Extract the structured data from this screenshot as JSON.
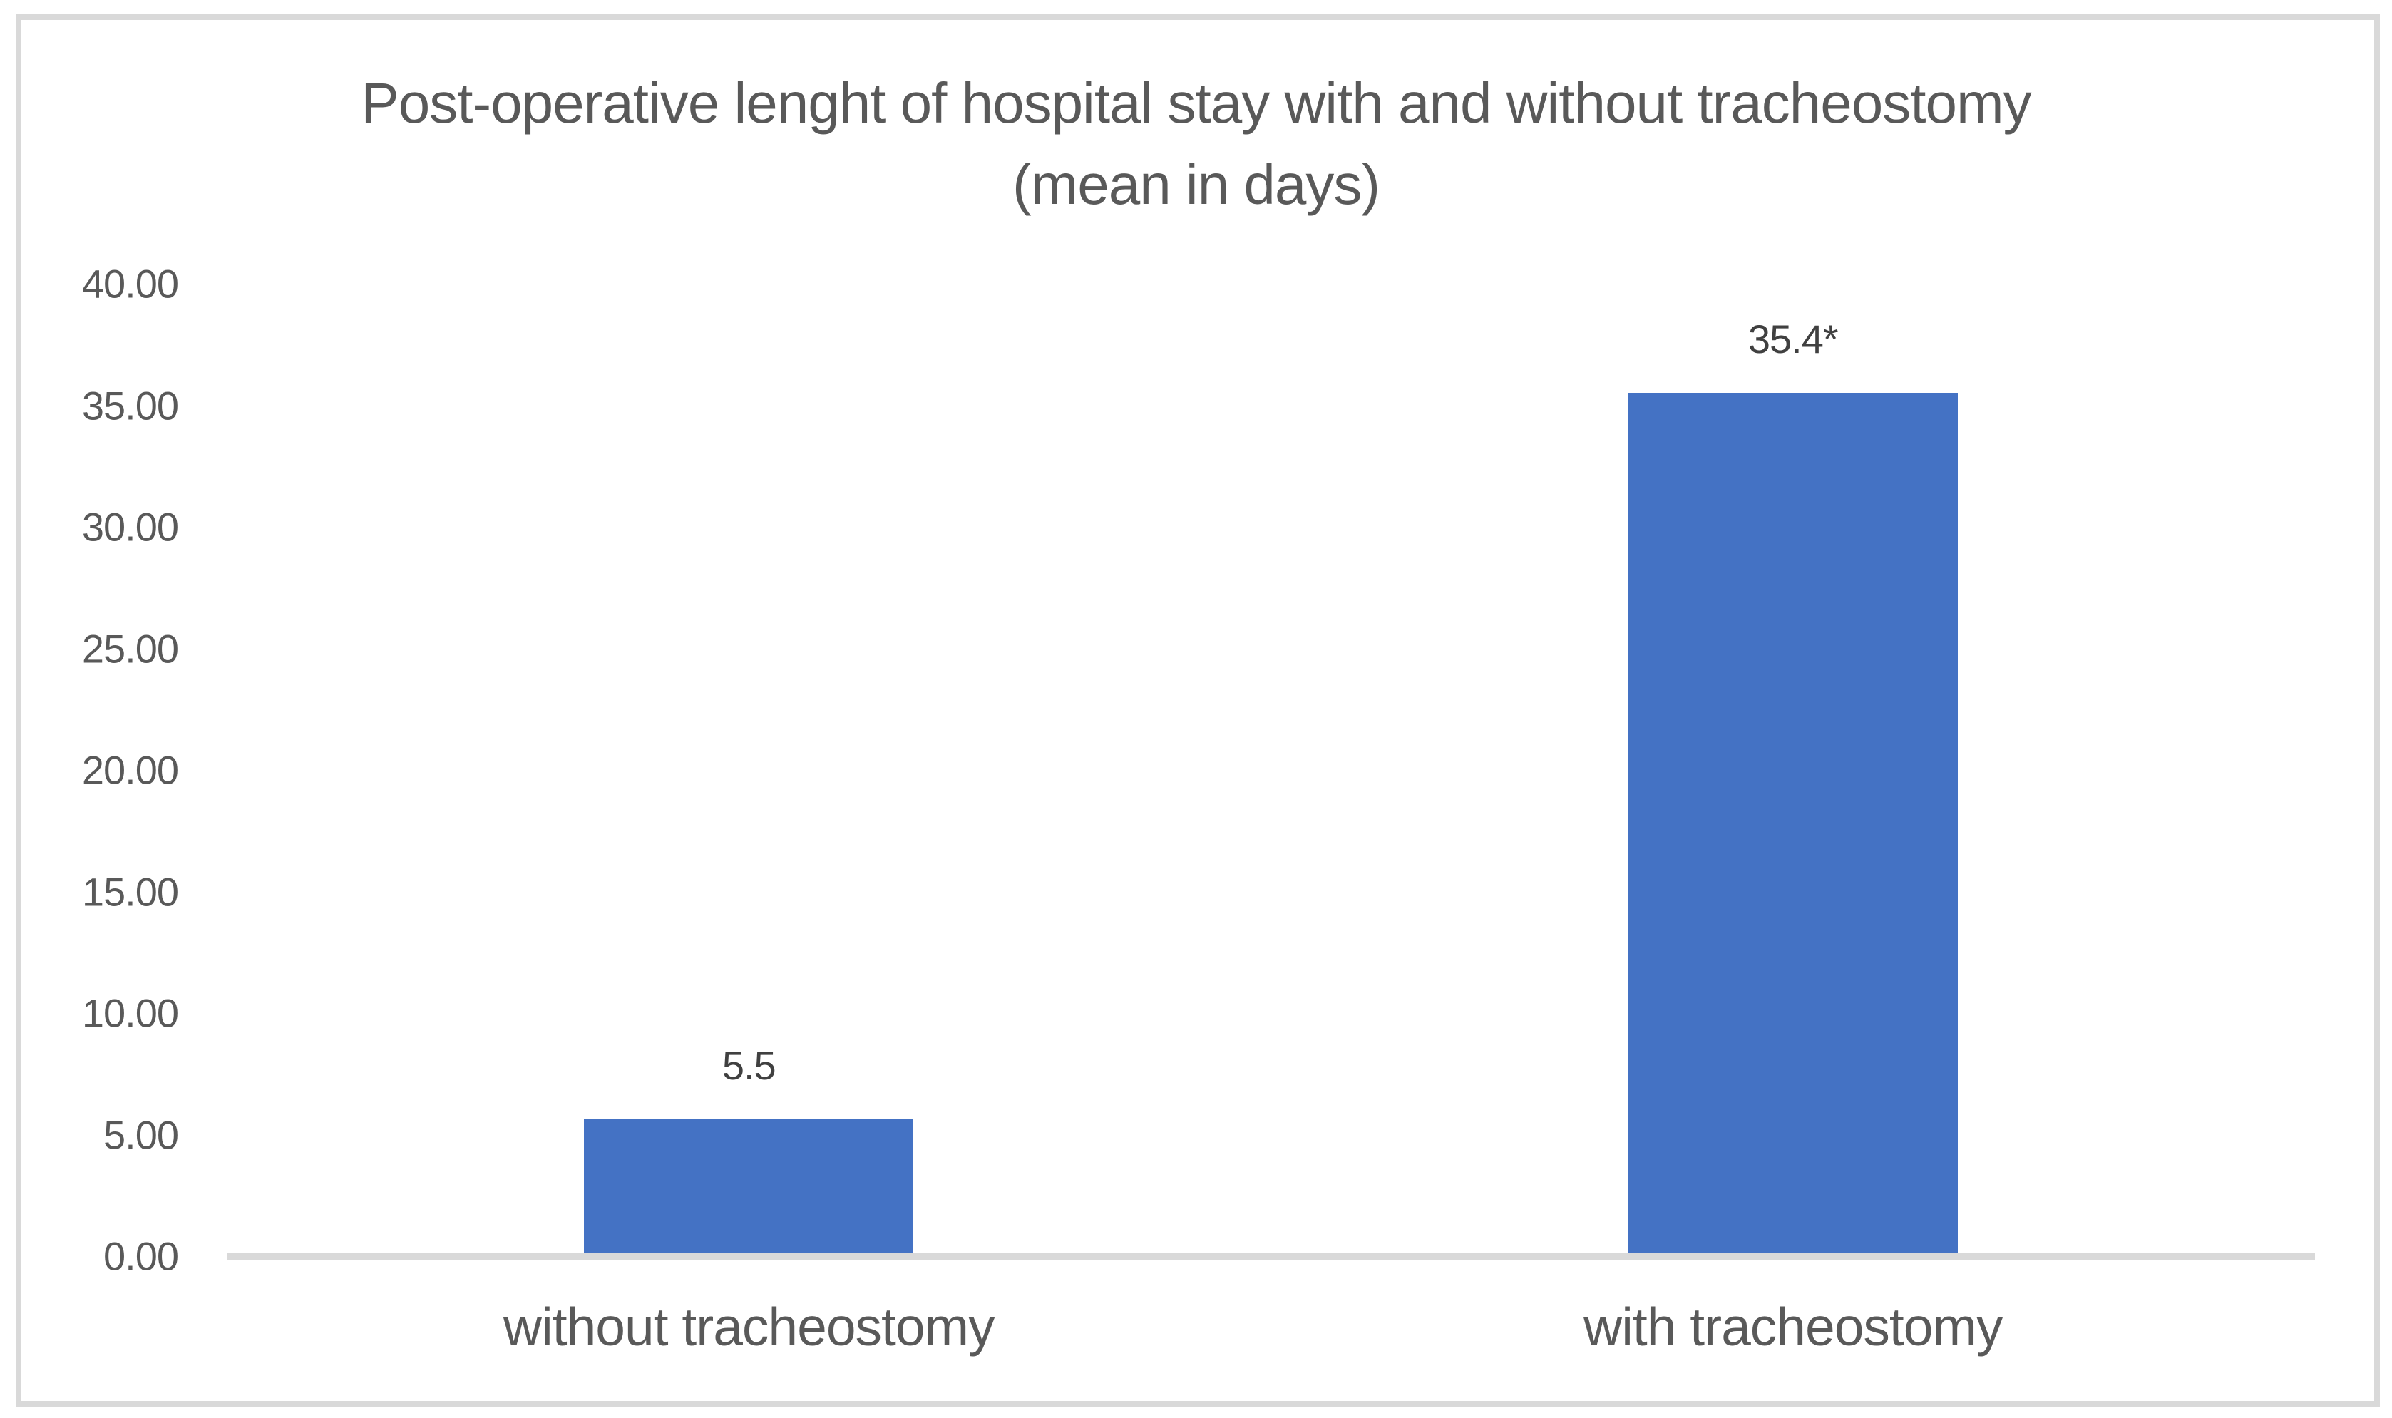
{
  "chart_data": {
    "type": "bar",
    "title_line1": "Post-operative lenght of hospital stay with and without tracheostomy",
    "title_line2": "(mean in days)",
    "categories": [
      "without tracheostomy",
      "with tracheostomy"
    ],
    "values": [
      5.5,
      35.4
    ],
    "data_labels": [
      "5.5",
      "35.4*"
    ],
    "ylim": [
      0,
      40
    ],
    "yticks": [
      {
        "value": 40,
        "label": "40.00"
      },
      {
        "value": 35,
        "label": "35.00"
      },
      {
        "value": 30,
        "label": "30.00"
      },
      {
        "value": 25,
        "label": "25.00"
      },
      {
        "value": 20,
        "label": "20.00"
      },
      {
        "value": 15,
        "label": "15.00"
      },
      {
        "value": 10,
        "label": "10.00"
      },
      {
        "value": 5,
        "label": "5.00"
      },
      {
        "value": 0,
        "label": "0.00"
      }
    ],
    "xlabel": "",
    "ylabel": "",
    "grid": false,
    "legend": false,
    "colors": {
      "bar": "#4472C4",
      "axis_line": "#D9D9D9",
      "frame_border": "#D9D9D9",
      "title_text": "#595959",
      "axis_text": "#595959",
      "data_label_text": "#404040",
      "background": "#FFFFFF"
    }
  }
}
